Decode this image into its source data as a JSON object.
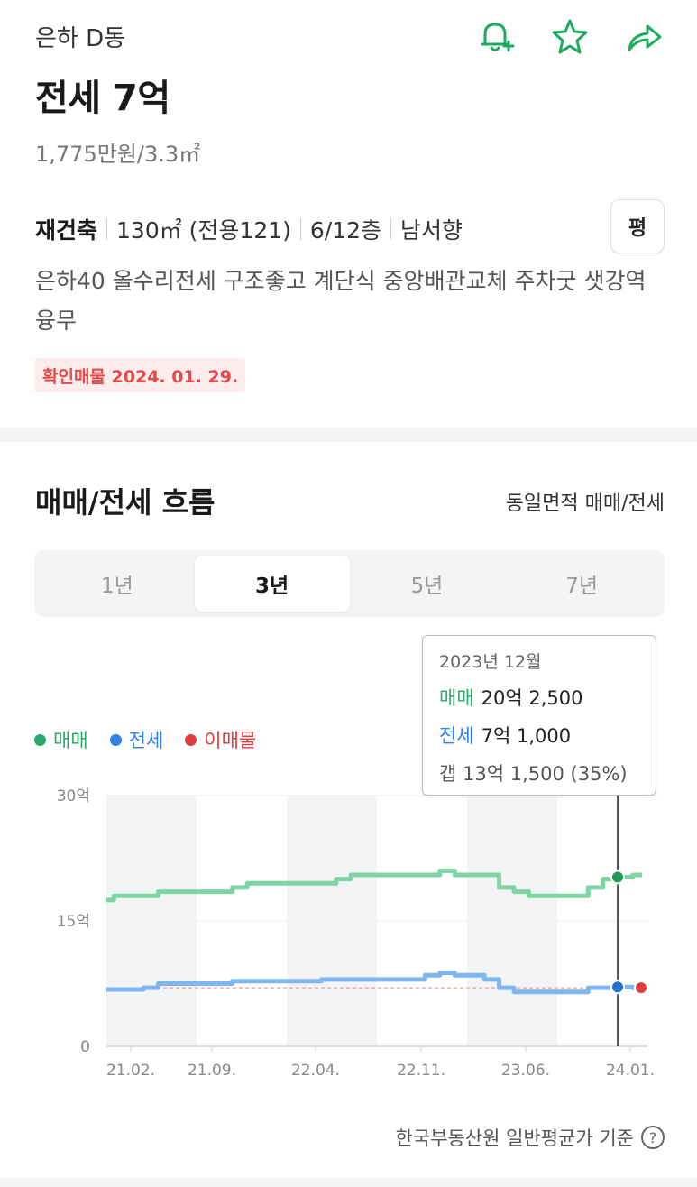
{
  "header": {
    "complex_name": "은하 D동",
    "icons": [
      "bell-plus-icon",
      "star-icon",
      "share-icon"
    ],
    "price_title": "전세 7억",
    "unit_price": "1,775만원/3.3㎡"
  },
  "specs": {
    "building": "재건축",
    "area": "130㎡ (전용121)",
    "floor": "6/12층",
    "direction": "남서향",
    "pyeong_button": "평"
  },
  "description": "은하40 올수리전세 구조좋고 계단식 중앙배관교체 주차굿 샛강역 융무",
  "confirm_badge": "확인매물 2024. 01. 29.",
  "flow": {
    "title": "매매/전세 흐름",
    "link": "동일면적 매매/전세",
    "tabs": [
      {
        "label": "1년",
        "active": false
      },
      {
        "label": "3년",
        "active": true
      },
      {
        "label": "5년",
        "active": false
      },
      {
        "label": "7년",
        "active": false
      }
    ],
    "legend": [
      {
        "label": "매매",
        "color": "#2aa86b"
      },
      {
        "label": "전세",
        "color": "#2f80ed"
      },
      {
        "label": "이매물",
        "color": "#e03c3c"
      }
    ],
    "tooltip": {
      "date": "2023년 12월",
      "sale_label": "매매",
      "sale_value": "20억 2,500",
      "jeonse_label": "전세",
      "jeonse_value": "7억 1,000",
      "gap": "갭 13억 1,500 (35%)"
    },
    "footer_note": "한국부동산원 일반평균가 기준",
    "help_icon": "question-icon"
  },
  "chart_data": {
    "type": "line",
    "y_ticks": [
      "30억",
      "15억",
      "0"
    ],
    "ylim": [
      0,
      30
    ],
    "x_ticks": [
      "21.02.",
      "21.09.",
      "22.04.",
      "22.11.",
      "23.06.",
      "24.01."
    ],
    "x_range": [
      "2021-01",
      "2024-02"
    ],
    "series": [
      {
        "name": "매매",
        "color": "#7fd4a4",
        "points": [
          [
            "2021-01",
            17.5
          ],
          [
            "2021-02",
            18
          ],
          [
            "2021-04",
            18
          ],
          [
            "2021-05",
            18.5
          ],
          [
            "2021-09",
            18.5
          ],
          [
            "2021-10",
            19
          ],
          [
            "2021-11",
            19.5
          ],
          [
            "2022-04",
            19.5
          ],
          [
            "2022-05",
            20
          ],
          [
            "2022-06",
            20.5
          ],
          [
            "2022-11",
            20.5
          ],
          [
            "2022-12",
            21
          ],
          [
            "2023-01",
            20.5
          ],
          [
            "2023-03",
            20.5
          ],
          [
            "2023-04",
            19
          ],
          [
            "2023-05",
            18.5
          ],
          [
            "2023-06",
            18
          ],
          [
            "2023-09",
            18
          ],
          [
            "2023-10",
            19
          ],
          [
            "2023-11",
            20
          ],
          [
            "2023-12",
            20.25
          ],
          [
            "2024-01",
            20.5
          ]
        ]
      },
      {
        "name": "전세",
        "color": "#7fb6f0",
        "points": [
          [
            "2021-01",
            6.8
          ],
          [
            "2021-04",
            7
          ],
          [
            "2021-05",
            7.5
          ],
          [
            "2021-09",
            7.5
          ],
          [
            "2021-10",
            7.8
          ],
          [
            "2022-04",
            8
          ],
          [
            "2022-10",
            8
          ],
          [
            "2022-11",
            8.5
          ],
          [
            "2022-12",
            8.8
          ],
          [
            "2023-01",
            8.5
          ],
          [
            "2023-03",
            8
          ],
          [
            "2023-04",
            7
          ],
          [
            "2023-05",
            6.5
          ],
          [
            "2023-09",
            6.5
          ],
          [
            "2023-10",
            7
          ],
          [
            "2023-12",
            7.1
          ],
          [
            "2024-01",
            7
          ]
        ]
      }
    ],
    "reference_line": {
      "name": "이매물",
      "value": 7,
      "color": "#e03c3c"
    },
    "highlight": {
      "x": "2023-12",
      "sale": 20.25,
      "jeonse": 7.1
    },
    "listing_point": {
      "x": "2024-01",
      "value": 7
    }
  }
}
